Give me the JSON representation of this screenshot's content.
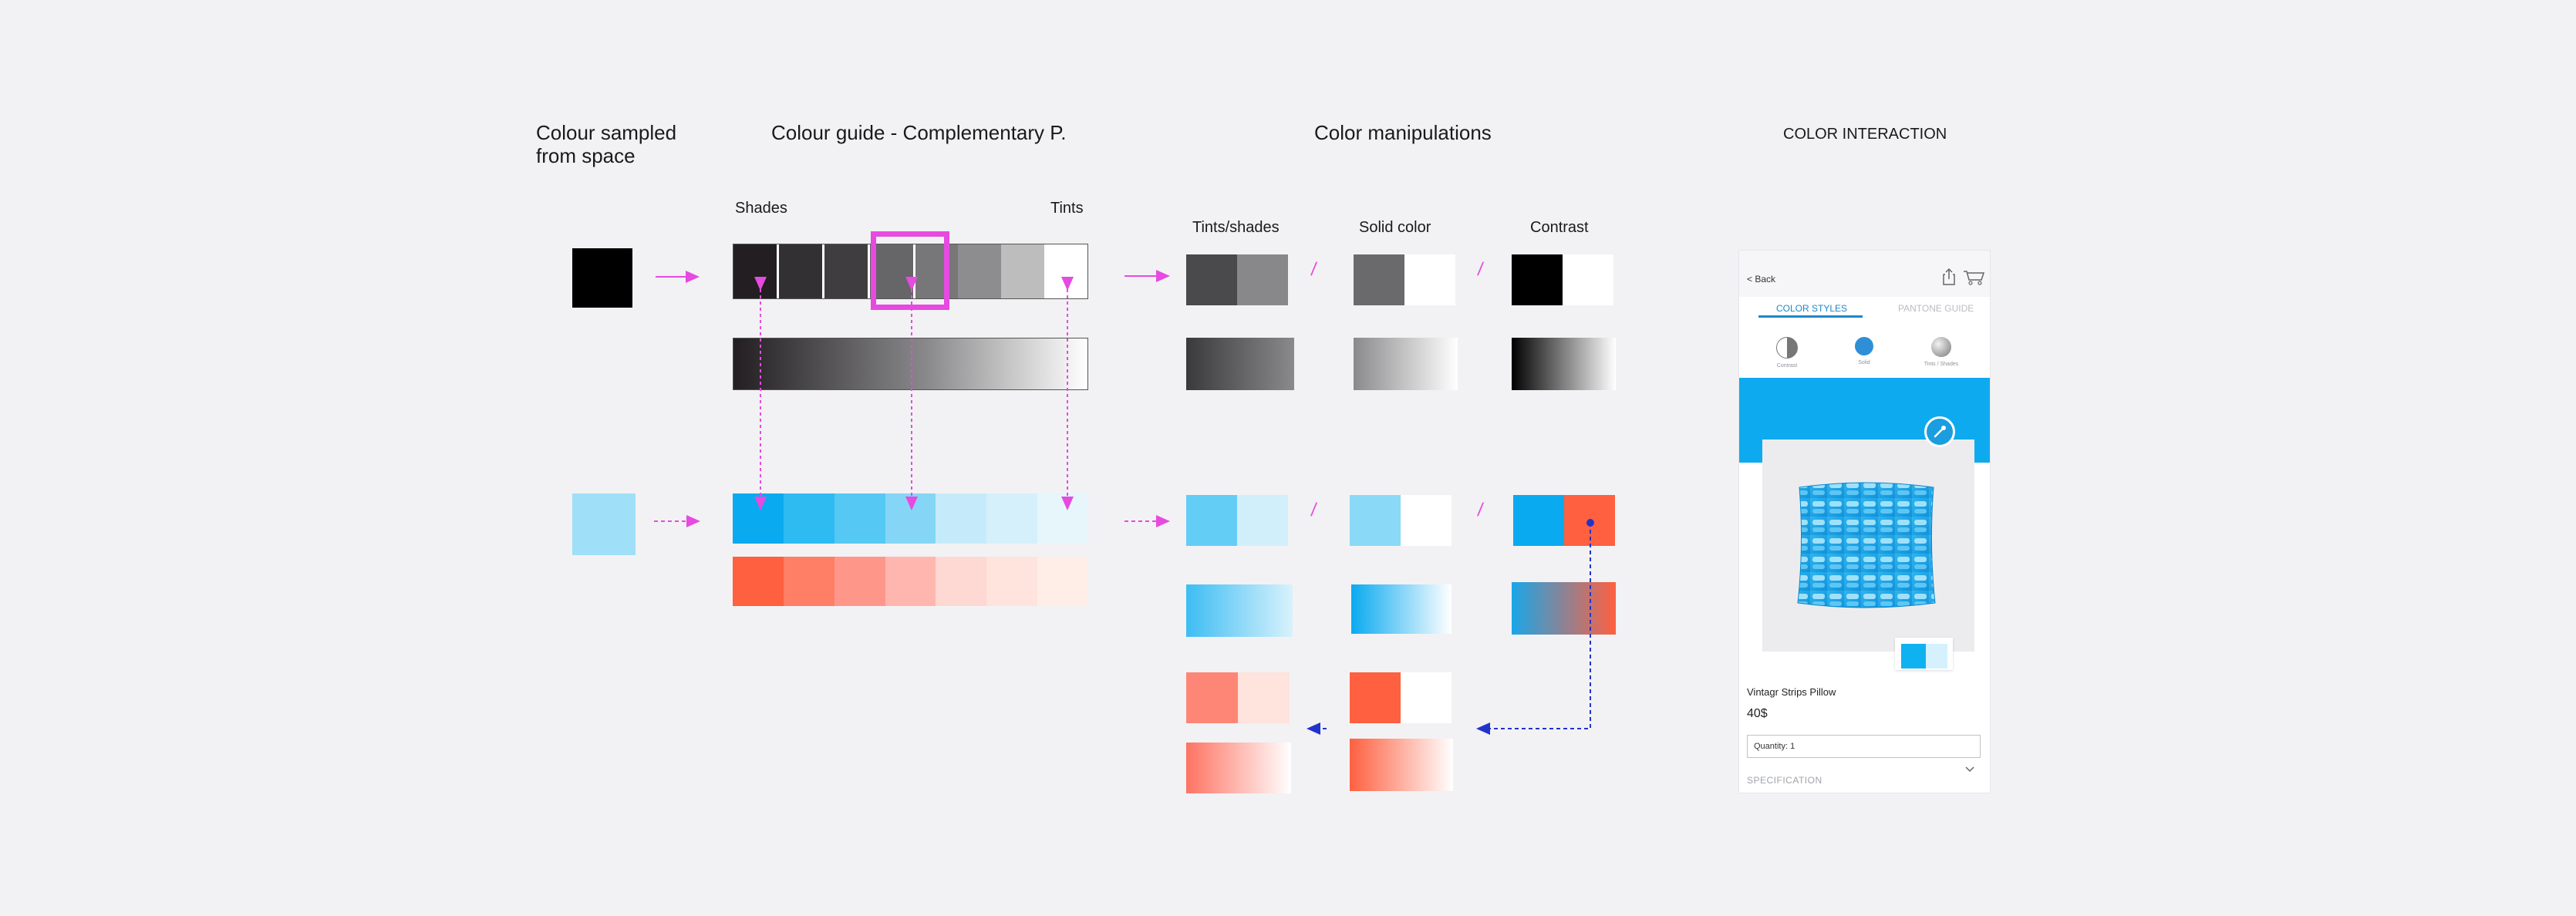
{
  "headings": {
    "sampled": "Colour sampled\nfrom space",
    "guide": "Colour guide - Complementary P.",
    "manip": "Color manipulations",
    "interaction": "COLOR INTERACTION"
  },
  "labels": {
    "shades": "Shades",
    "tints": "Tints",
    "tints_shades": "Tints/shades",
    "solid": "Solid color",
    "contrast": "Contrast",
    "slash": "/"
  },
  "colors": {
    "sampled_dark": "#000000",
    "sampled_light": "#9fdff8",
    "accent": "#e64ae0",
    "link_blue": "#2233cc",
    "gray_shades": [
      "#221e21",
      "#333033",
      "#403d41",
      "#666568",
      "#777679",
      "#8d8d90",
      "#bdbdbe",
      "#ffffff"
    ],
    "blue_tints": [
      "#0aaaf0",
      "#2dbbf2",
      "#55c8f3",
      "#85d6f6",
      "#c5ebfa",
      "#d5f0fb",
      "#e6f6fb"
    ],
    "coral_tints": [
      "#fe6040",
      "#fe7e66",
      "#fe978a",
      "#ffb6af",
      "#fed8d3",
      "#ffe3dd",
      "#ffede7"
    ]
  },
  "phone": {
    "back": "< Back",
    "tab_active": "COLOR STYLES",
    "tab_inactive": "PANTONE GUIDE",
    "options": [
      "Contrast",
      "Solid",
      "Tints / Shades"
    ],
    "product_name": "Vintagr Strips Pillow",
    "price": "40$",
    "quantity": "Quantity: 1",
    "specification": "SPECIFICATION"
  }
}
